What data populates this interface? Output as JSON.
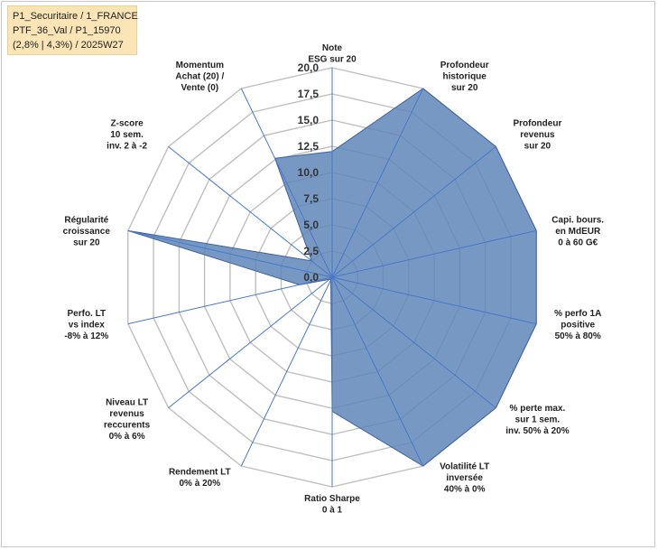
{
  "info_box": {
    "line1": "P1_Securitaire / 1_FRANCE",
    "line2": "PTF_36_Val / P1_15970",
    "line3": "(2,8% | 4,3%) / 2025W27"
  },
  "colors": {
    "fill": "#5f86b8",
    "stroke": "#3d62a0",
    "grid": "#bfbfbf",
    "spoke": "#4a78c8",
    "info_bg": "#fbe5b6"
  },
  "chart_data": {
    "type": "radar",
    "title": "",
    "rmin": 0,
    "rmax": 20,
    "ticks": [
      "0,0",
      "2,5",
      "5,0",
      "7,5",
      "10,0",
      "12,5",
      "15,0",
      "17,5",
      "20,0"
    ],
    "grid": true,
    "legend": "none",
    "axes": [
      {
        "label": [
          "Note",
          "ESG sur 20"
        ],
        "value": 12
      },
      {
        "label": [
          "Profondeur",
          "historique",
          "sur 20"
        ],
        "value": 20
      },
      {
        "label": [
          "Profondeur",
          "revenus",
          "sur 20"
        ],
        "value": 20
      },
      {
        "label": [
          "Capi. bours.",
          "en MdEUR",
          "0 à 60 G€"
        ],
        "value": 20
      },
      {
        "label": [
          "% perfo 1A",
          "positive",
          "50% à 80%"
        ],
        "value": 20
      },
      {
        "label": [
          "% perte max.",
          "sur 1 sem.",
          "inv. 50% à 20%"
        ],
        "value": 20
      },
      {
        "label": [
          "Volatilité LT",
          "inversée",
          "40% à 0%"
        ],
        "value": 20
      },
      {
        "label": [
          "Ratio Sharpe",
          "0 à 1"
        ],
        "value": 12.8
      },
      {
        "label": [
          "Rendement LT",
          "0% à 20%"
        ],
        "value": 0.3
      },
      {
        "label": [
          "Niveau LT",
          "revenus",
          "reccurents",
          "0% à 6%"
        ],
        "value": 0.3
      },
      {
        "label": [
          "Perfo. LT",
          "vs index",
          "-8% à 12%"
        ],
        "value": 3.2
      },
      {
        "label": [
          "Régularité",
          "croissance",
          "sur 20"
        ],
        "value": 20
      },
      {
        "label": [
          "Z-score",
          "10 sem.",
          "inv. 2 à -2"
        ],
        "value": 2.5
      },
      {
        "label": [
          "Momentum",
          "Achat (20) /",
          "Vente (0)"
        ],
        "value": 12.6
      }
    ]
  }
}
